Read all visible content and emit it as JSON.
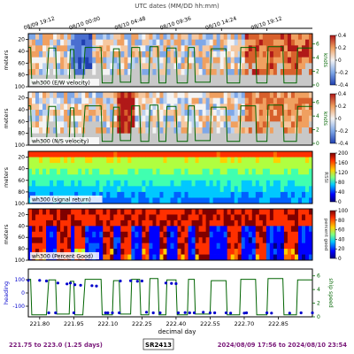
{
  "figure": {
    "top_axis_title": "UTC dates (MM/DD hh:mm)",
    "top_ticks": [
      "08/09 19:12",
      "08/10 00:00",
      "08/10 04:48",
      "08/10 09:36",
      "08/10 14:24",
      "08/10 19:12"
    ],
    "xlabel": "decimal day",
    "bottom_ticks": [
      "221.80",
      "221.95",
      "222.10",
      "222.25",
      "222.40",
      "222.55",
      "222.70",
      "222.85"
    ],
    "footer_left": "221.75 to 223.0 (1.25 days)",
    "footer_center": "SR2413",
    "footer_right": "2024/08/09 17:56 to 2024/08/10 23:54",
    "colors": {
      "footer_text": "#7a1a7a",
      "speed_line": "#006400",
      "heading_points": "#0000cc"
    }
  },
  "chart_data": [
    {
      "type": "heatmap",
      "panel_label": "wh300 (E/W velocity)",
      "ylabel": "meters",
      "yticks": [
        "20",
        "40",
        "60",
        "80",
        "100"
      ],
      "ylim": [
        100,
        10
      ],
      "colorbar_ticks": [
        "0.4",
        "0.2",
        "0",
        "-0.2",
        "-0.4"
      ],
      "colorbar_range": [
        -0.4,
        0.4
      ],
      "colormap": "blue-white-red",
      "right_ylabel": "knots",
      "right_yticks": [
        "6",
        "4",
        "2",
        "0"
      ]
    },
    {
      "type": "heatmap",
      "panel_label": "wh300 (N/S velocity)",
      "ylabel": "meters",
      "yticks": [
        "20",
        "40",
        "60",
        "80",
        "100"
      ],
      "ylim": [
        100,
        10
      ],
      "colorbar_ticks": [
        "0.4",
        "0.2",
        "0",
        "-0.2",
        "-0.4"
      ],
      "colorbar_range": [
        -0.4,
        0.4
      ],
      "colormap": "blue-white-red",
      "right_ylabel": "knots",
      "right_yticks": [
        "6",
        "4",
        "2",
        "0"
      ]
    },
    {
      "type": "heatmap",
      "panel_label": "wh300 (signal return)",
      "ylabel": "meters",
      "yticks": [
        "20",
        "40",
        "60",
        "80",
        "100"
      ],
      "ylim": [
        100,
        10
      ],
      "colorbar_ticks": [
        "200",
        "160",
        "120",
        "80",
        "40",
        "0"
      ],
      "colorbar_range": [
        0,
        200
      ],
      "colormap": "jet",
      "colorbar_label": "RSSI"
    },
    {
      "type": "heatmap",
      "panel_label": "wh300 (Percent Good)",
      "ylabel": "meters",
      "yticks": [
        "20",
        "40",
        "60",
        "80",
        "100"
      ],
      "ylim": [
        100,
        10
      ],
      "colorbar_ticks": [
        "100",
        "80",
        "60",
        "40",
        "20",
        "0"
      ],
      "colorbar_range": [
        0,
        100
      ],
      "colormap": "jet",
      "colorbar_label": "percent good"
    },
    {
      "type": "line",
      "ylabel": "heading",
      "yticks": [
        "100",
        "0",
        "-100"
      ],
      "ylim": [
        -180,
        180
      ],
      "right_ylabel": "ship speed",
      "right_yticks": [
        "6",
        "4",
        "2",
        "0"
      ],
      "right_ylim": [
        0,
        7
      ],
      "xlim": [
        221.75,
        223.0
      ],
      "series": [
        {
          "kind": "heading",
          "x": [
            221.75,
            221.8,
            221.83,
            221.84,
            221.87,
            221.88,
            221.92,
            221.935,
            221.95,
            221.955,
            221.98,
            222.03,
            222.05,
            222.09,
            222.1,
            222.12,
            222.15,
            222.155,
            222.2,
            222.23,
            222.25,
            222.27,
            222.3,
            222.33,
            222.355,
            222.38,
            222.4,
            222.41,
            222.44,
            222.46,
            222.48,
            222.52,
            222.55,
            222.57,
            222.62,
            222.64,
            222.7,
            222.71,
            222.8,
            222.82,
            222.9,
            222.95,
            223.0
          ],
          "y": [
            95,
            95,
            90,
            -150,
            -150,
            75,
            68,
            75,
            -150,
            62,
            58,
            55,
            52,
            -150,
            -150,
            -150,
            -150,
            90,
            92,
            88,
            90,
            -145,
            -150,
            -150,
            75,
            72,
            70,
            -150,
            -148,
            -150,
            -150,
            -145,
            -150,
            -150,
            -150,
            -152,
            -152,
            -150,
            -150,
            -152,
            -152,
            -150,
            -150
          ]
        },
        {
          "kind": "speed",
          "x": [
            221.75,
            221.76,
            221.765,
            221.8,
            221.83,
            221.84,
            221.87,
            221.875,
            221.93,
            221.935,
            221.95,
            221.955,
            221.99,
            222.0,
            222.07,
            222.075,
            222.12,
            222.125,
            222.15,
            222.155,
            222.2,
            222.205,
            222.24,
            222.245,
            222.28,
            222.285,
            222.32,
            222.325,
            222.355,
            222.36,
            222.4,
            222.405,
            222.45,
            222.455,
            222.48,
            222.485,
            222.55,
            222.555,
            222.62,
            222.625,
            222.68,
            222.685,
            222.75,
            222.755,
            222.8,
            222.805,
            222.87,
            222.875,
            222.93,
            222.935,
            223.0
          ],
          "y": [
            5.5,
            5.5,
            0.3,
            0.3,
            0.3,
            5.4,
            5.4,
            0.4,
            0.4,
            5.2,
            5.2,
            0.3,
            0.3,
            5.5,
            5.5,
            0.3,
            0.3,
            5.3,
            5.3,
            0.4,
            0.4,
            5.5,
            5.5,
            0.3,
            0.3,
            5.6,
            5.6,
            0.3,
            0.3,
            5.4,
            5.4,
            0.3,
            0.3,
            5.5,
            5.5,
            0.4,
            0.4,
            5.3,
            5.3,
            0.3,
            0.3,
            5.5,
            5.5,
            0.3,
            0.3,
            5.6,
            5.6,
            0.3,
            0.3,
            5.4,
            5.4
          ]
        }
      ]
    }
  ]
}
